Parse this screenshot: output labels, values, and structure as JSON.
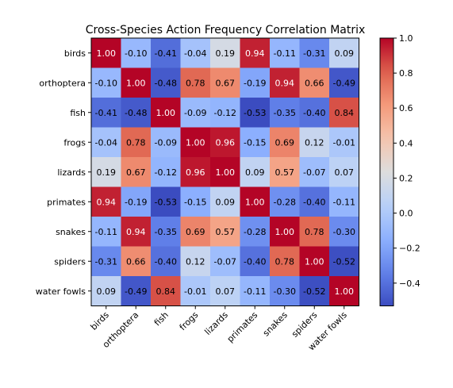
{
  "chart_data": {
    "type": "heatmap",
    "title": "Cross-Species Action Frequency Correlation Matrix",
    "xlabel": "",
    "ylabel": "",
    "colormap": "coolwarm",
    "value_format": "2 decimals",
    "rows": [
      "birds",
      "orthoptera",
      "fish",
      "frogs",
      "lizards",
      "primates",
      "snakes",
      "spiders",
      "water fowls"
    ],
    "cols": [
      "birds",
      "orthoptera",
      "fish",
      "frogs",
      "lizards",
      "primates",
      "snakes",
      "spiders",
      "water fowls"
    ],
    "values": [
      [
        1.0,
        -0.1,
        -0.41,
        -0.04,
        0.19,
        0.94,
        -0.11,
        -0.31,
        0.09
      ],
      [
        -0.1,
        1.0,
        -0.48,
        0.78,
        0.67,
        -0.19,
        0.94,
        0.66,
        -0.49
      ],
      [
        -0.41,
        -0.48,
        1.0,
        -0.09,
        -0.12,
        -0.53,
        -0.35,
        -0.4,
        0.84
      ],
      [
        -0.04,
        0.78,
        -0.09,
        1.0,
        0.96,
        -0.15,
        0.69,
        0.12,
        -0.01
      ],
      [
        0.19,
        0.67,
        -0.12,
        0.96,
        1.0,
        0.09,
        0.57,
        -0.07,
        0.07
      ],
      [
        0.94,
        -0.19,
        -0.53,
        -0.15,
        0.09,
        1.0,
        -0.28,
        -0.4,
        -0.11
      ],
      [
        -0.11,
        0.94,
        -0.35,
        0.69,
        0.57,
        -0.28,
        1.0,
        0.78,
        -0.3
      ],
      [
        -0.31,
        0.66,
        -0.4,
        0.12,
        -0.07,
        -0.4,
        0.78,
        1.0,
        -0.52
      ],
      [
        0.09,
        -0.49,
        0.84,
        -0.01,
        0.07,
        -0.11,
        -0.3,
        -0.52,
        1.0
      ]
    ],
    "colorbar": {
      "vmin": -0.53,
      "vmax": 1.0,
      "ticks": [
        1.0,
        0.8,
        0.6,
        0.4,
        0.2,
        0.0,
        -0.2,
        -0.4
      ],
      "tick_labels": [
        "1.0",
        "0.8",
        "0.6",
        "0.4",
        "0.2",
        "0.0",
        "−0.2",
        "−0.4"
      ]
    },
    "grid": false
  }
}
